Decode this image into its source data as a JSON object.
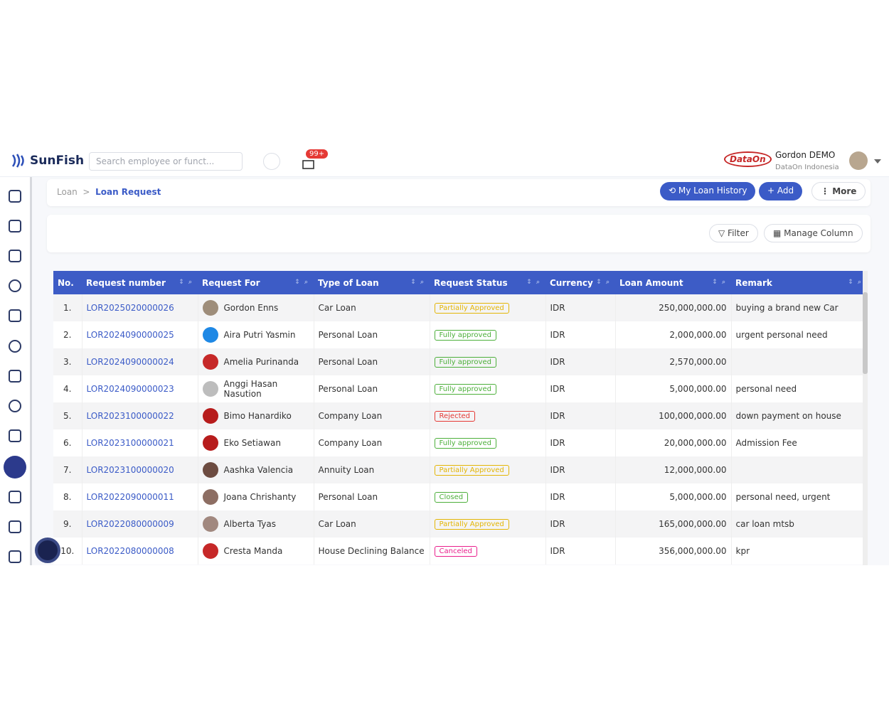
{
  "header": {
    "logo": "SunFish",
    "search_placeholder": "Search employee or funct...",
    "notification_badge": "99+",
    "company_logo": "DataOn",
    "user_name": "Gordon DEMO",
    "user_company": "DataOn Indonesia"
  },
  "breadcrumb": [
    "Loan",
    "Loan Request"
  ],
  "actions": {
    "history": "My Loan History",
    "add": "Add",
    "more": "More",
    "filter": "Filter",
    "manage_column": "Manage Column"
  },
  "table": {
    "columns": [
      "No.",
      "Request number",
      "Request For",
      "Type of Loan",
      "Request Status",
      "Currency",
      "Loan Amount",
      "Remark"
    ],
    "rows": [
      {
        "no": "1.",
        "request_number": "LOR2025020000026",
        "request_for": "Gordon Enns",
        "type": "Car Loan",
        "status": "Partially Approved",
        "status_color": "#e3b505",
        "currency": "IDR",
        "amount": "250,000,000.00",
        "remark": "buying a brand new Car"
      },
      {
        "no": "2.",
        "request_number": "LOR2024090000025",
        "request_for": "Aira Putri Yasmin",
        "type": "Personal Loan",
        "status": "Fully approved",
        "status_color": "#4caf3a",
        "currency": "IDR",
        "amount": "2,000,000.00",
        "remark": "urgent personal need"
      },
      {
        "no": "3.",
        "request_number": "LOR2024090000024",
        "request_for": "Amelia Purinanda",
        "type": "Personal Loan",
        "status": "Fully approved",
        "status_color": "#4caf3a",
        "currency": "IDR",
        "amount": "2,570,000.00"
      },
      {
        "no": "4.",
        "request_number": "LOR2024090000023",
        "request_for": "Anggi Hasan Nasution",
        "type": "Personal Loan",
        "status": "Fully approved",
        "status_color": "#4caf3a",
        "currency": "IDR",
        "amount": "5,000,000.00",
        "remark": "personal need"
      },
      {
        "no": "5.",
        "request_number": "LOR2023100000022",
        "request_for": "Bimo Hanardiko",
        "type": "Company Loan",
        "status": "Rejected",
        "status_color": "#e53935",
        "currency": "IDR",
        "amount": "100,000,000.00",
        "remark": "down payment on house"
      },
      {
        "no": "6.",
        "request_number": "LOR2023100000021",
        "request_for": "Eko Setiawan",
        "type": "Company Loan",
        "status": "Fully approved",
        "status_color": "#4caf3a",
        "currency": "IDR",
        "amount": "20,000,000.00",
        "remark": "Admission Fee"
      },
      {
        "no": "7.",
        "request_number": "LOR2023100000020",
        "request_for": "Aashka Valencia",
        "type": "Annuity Loan",
        "status": "Partially Approved",
        "status_color": "#e3b505",
        "currency": "IDR",
        "amount": "12,000,000.00"
      },
      {
        "no": "8.",
        "request_number": "LOR2022090000011",
        "request_for": "Joana Chrishanty",
        "type": "Personal Loan",
        "status": "Closed",
        "status_color": "#4caf3a",
        "currency": "IDR",
        "amount": "5,000,000.00",
        "remark": "personal need, urgent"
      },
      {
        "no": "9.",
        "request_number": "LOR2022080000009",
        "request_for": "Alberta Tyas",
        "type": "Car Loan",
        "status": "Partially Approved",
        "status_color": "#e3b505",
        "currency": "IDR",
        "amount": "165,000,000.00",
        "remark": "car loan mtsb"
      },
      {
        "no": "10.",
        "request_number": "LOR2022080000008",
        "request_for": "Cresta Manda",
        "type": "House Declining Balance",
        "status": "Canceled",
        "status_color": "#e91e8c",
        "currency": "IDR",
        "amount": "356,000,000.00",
        "remark": "kpr"
      }
    ]
  }
}
